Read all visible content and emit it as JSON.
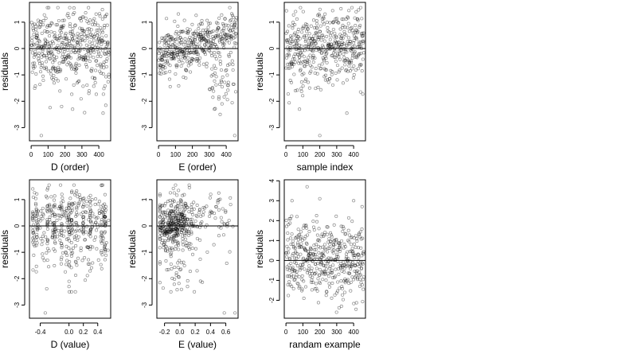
{
  "chart_data": [
    {
      "type": "scatter",
      "xlabel": "D (order)",
      "ylabel": "residuals",
      "xlim": [
        -10,
        470
      ],
      "ylim": [
        -3.5,
        1.75
      ],
      "xticks": [
        0,
        100,
        200,
        300,
        400
      ],
      "yticks": [
        -3,
        -2,
        -1,
        0,
        1
      ],
      "hline": 0,
      "n_points": 460,
      "series": [
        {
          "x": "sample index 1..460",
          "y_mean": 0.15,
          "y_sd": 0.65,
          "outliers": [
            [
              60,
              -3.3
            ],
            [
              245,
              -2.3
            ],
            [
              180,
              -2.2
            ],
            [
              425,
              -2.45
            ]
          ]
        }
      ]
    },
    {
      "type": "scatter",
      "xlabel": "E (order)",
      "ylabel": "residuals",
      "xlim": [
        -10,
        470
      ],
      "ylim": [
        -3.5,
        1.75
      ],
      "xticks": [
        0,
        100,
        200,
        300,
        400
      ],
      "yticks": [
        -3,
        -2,
        -1,
        0,
        1
      ],
      "hline": 0,
      "n_points": 460,
      "series": [
        {
          "x": "sample index 1..460",
          "trend": "rising from ~-0.3 to ~0.6 with wider negative spread above x=300",
          "outliers": [
            [
              450,
              -3.3
            ],
            [
              330,
              -2.3
            ],
            [
              375,
              -2.1
            ]
          ]
        }
      ]
    },
    {
      "type": "scatter",
      "xlabel": "sample index",
      "ylabel": "residuals",
      "xlim": [
        -10,
        470
      ],
      "ylim": [
        -3.5,
        1.75
      ],
      "xticks": [
        0,
        100,
        200,
        300,
        400
      ],
      "yticks": [
        -3,
        -2,
        -1,
        0,
        1
      ],
      "hline": 0,
      "n_points": 460,
      "series": [
        {
          "x": "sample index 1..460",
          "y_mean": 0.15,
          "y_sd": 0.65,
          "outliers": [
            [
              200,
              -3.3
            ],
            [
              80,
              -2.3
            ],
            [
              360,
              -2.45
            ]
          ]
        }
      ]
    },
    {
      "type": "scatter",
      "xlabel": "D (value)",
      "ylabel": "residuals",
      "xlim": [
        -0.55,
        0.58
      ],
      "ylim": [
        -3.5,
        1.75
      ],
      "xticks": [
        -0.4,
        0.0,
        0.2,
        0.4
      ],
      "xticklabels": [
        "-0.4",
        "0.0",
        "0.2",
        "0.4"
      ],
      "yticks": [
        -3,
        -2,
        -1,
        0,
        1
      ],
      "hline": 0,
      "n_points": 460,
      "series": [
        {
          "x": "D values in [-0.5, 0.55], vertical stripe near 0.04",
          "outliers": [
            [
              -0.33,
              -3.3
            ],
            [
              0.0,
              -2.3
            ]
          ]
        }
      ]
    },
    {
      "type": "scatter",
      "xlabel": "E (value)",
      "ylabel": "residuals",
      "xlim": [
        -0.3,
        0.76
      ],
      "ylim": [
        -3.5,
        1.75
      ],
      "xticks": [
        -0.2,
        0.0,
        0.2,
        0.4,
        0.6
      ],
      "xticklabels": [
        "-0.2",
        "0.0",
        "0.2",
        "0.4",
        "0.6"
      ],
      "yticks": [
        -3,
        -2,
        -1,
        0,
        1
      ],
      "hline": 0,
      "n_points": 460,
      "series": [
        {
          "x": "E values concentrated in [-0.25, 0.35]",
          "outliers": [
            [
              0.58,
              -3.3
            ],
            [
              0.72,
              -3.3
            ],
            [
              0.1,
              -2.3
            ]
          ]
        }
      ]
    },
    {
      "type": "scatter",
      "xlabel": "randam example",
      "ylabel": "residuals",
      "xlim": [
        -10,
        470
      ],
      "ylim": [
        -2.9,
        4.05
      ],
      "xticks": [
        0,
        100,
        200,
        300,
        400
      ],
      "yticks": [
        -2,
        -1,
        0,
        1,
        2,
        3,
        4
      ],
      "hline": 0,
      "n_points": 460,
      "series": [
        {
          "x": "sample index 1..460",
          "y_mean": 0.0,
          "y_sd": 1.0,
          "outliers": [
            [
              125,
              3.7
            ],
            [
              200,
              3.1
            ],
            [
              450,
              2.7
            ]
          ]
        }
      ]
    }
  ]
}
